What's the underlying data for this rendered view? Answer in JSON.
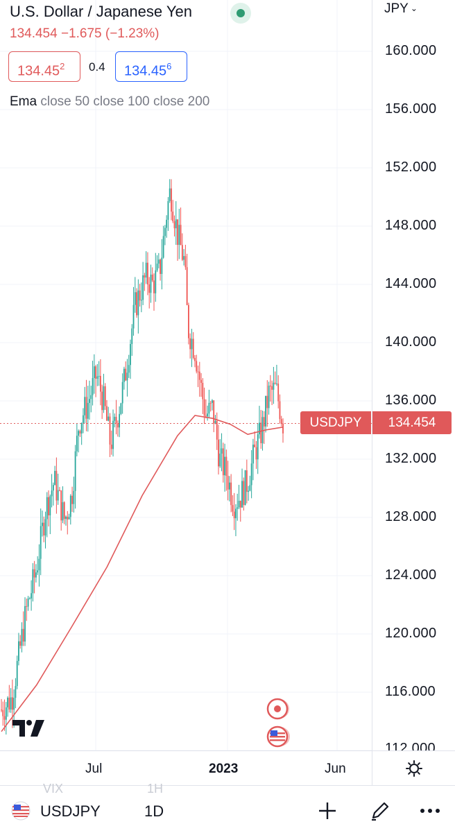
{
  "header": {
    "title": "U.S. Dollar / Japanese Yen",
    "quote": "134.454  −1.675 (−1.23%)",
    "sell_price": "134.45",
    "sell_price_sup": "2",
    "spread": "0.4",
    "buy_price": "134.45",
    "buy_price_sup": "6"
  },
  "indicator": {
    "name": "Ema",
    "params": "close 50 close 100 close 200"
  },
  "price_scale": {
    "currency": "JPY",
    "ticks": [
      "160.000",
      "156.000",
      "152.000",
      "148.000",
      "144.000",
      "140.000",
      "136.000",
      "132.000",
      "128.000",
      "124.000",
      "120.000",
      "116.000",
      "112.000"
    ]
  },
  "time_axis": {
    "labels": [
      "Jul",
      "2023",
      "Jun"
    ]
  },
  "price_tag": {
    "symbol": "USDJPY",
    "value": "134.454"
  },
  "toolbar": {
    "symbol": "USDJPY",
    "interval": "1D",
    "ghost_left": "VIX",
    "ghost_right": "1H"
  },
  "colors": {
    "up": "#26a69a",
    "down": "#ef5350",
    "ema": "#e0595a",
    "live": "#2f9b72",
    "buy": "#2962ff"
  },
  "icons": [
    "live-dot-icon",
    "chevron-down-icon",
    "settings-gear-icon",
    "tradingview-logo-icon",
    "event-icon",
    "us-flag-icon",
    "plus-icon",
    "pencil-icon",
    "more-icon"
  ],
  "chart_data": {
    "type": "candlestick",
    "symbol": "USDJPY",
    "interval": "1D",
    "ylim": [
      112,
      162
    ],
    "current_price": 134.454,
    "anchors": [
      {
        "pos": 0.0,
        "v": 114.8
      },
      {
        "pos": 0.03,
        "v": 115.6
      },
      {
        "pos": 0.07,
        "v": 121.5
      },
      {
        "pos": 0.1,
        "v": 124.5
      },
      {
        "pos": 0.125,
        "v": 128.5
      },
      {
        "pos": 0.15,
        "v": 130.5
      },
      {
        "pos": 0.18,
        "v": 127.8
      },
      {
        "pos": 0.2,
        "v": 129.5
      },
      {
        "pos": 0.22,
        "v": 134.5
      },
      {
        "pos": 0.245,
        "v": 135.8
      },
      {
        "pos": 0.27,
        "v": 137.8
      },
      {
        "pos": 0.29,
        "v": 136.0
      },
      {
        "pos": 0.31,
        "v": 133.0
      },
      {
        "pos": 0.33,
        "v": 135.0
      },
      {
        "pos": 0.35,
        "v": 137.5
      },
      {
        "pos": 0.38,
        "v": 142.5
      },
      {
        "pos": 0.41,
        "v": 144.5
      },
      {
        "pos": 0.43,
        "v": 144.0
      },
      {
        "pos": 0.45,
        "v": 145.0
      },
      {
        "pos": 0.47,
        "v": 149.0
      },
      {
        "pos": 0.48,
        "v": 150.5
      },
      {
        "pos": 0.5,
        "v": 147.5
      },
      {
        "pos": 0.51,
        "v": 146.5
      },
      {
        "pos": 0.52,
        "v": 145.5
      },
      {
        "pos": 0.53,
        "v": 141.0
      },
      {
        "pos": 0.55,
        "v": 139.5
      },
      {
        "pos": 0.57,
        "v": 136.5
      },
      {
        "pos": 0.58,
        "v": 135.0
      },
      {
        "pos": 0.6,
        "v": 135.5
      },
      {
        "pos": 0.62,
        "v": 132.0
      },
      {
        "pos": 0.64,
        "v": 131.0
      },
      {
        "pos": 0.66,
        "v": 129.0
      },
      {
        "pos": 0.68,
        "v": 129.5
      },
      {
        "pos": 0.7,
        "v": 130.5
      },
      {
        "pos": 0.72,
        "v": 132.5
      },
      {
        "pos": 0.74,
        "v": 134.0
      },
      {
        "pos": 0.76,
        "v": 136.5
      },
      {
        "pos": 0.78,
        "v": 136.8
      },
      {
        "pos": 0.8,
        "v": 134.5
      }
    ],
    "ema_line": [
      {
        "pos": 0.0,
        "v": 113.3
      },
      {
        "pos": 0.1,
        "v": 116.5
      },
      {
        "pos": 0.2,
        "v": 120.5
      },
      {
        "pos": 0.3,
        "v": 124.6
      },
      {
        "pos": 0.4,
        "v": 129.5
      },
      {
        "pos": 0.5,
        "v": 133.6
      },
      {
        "pos": 0.55,
        "v": 135.0
      },
      {
        "pos": 0.6,
        "v": 134.8
      },
      {
        "pos": 0.65,
        "v": 134.4
      },
      {
        "pos": 0.7,
        "v": 133.7
      },
      {
        "pos": 0.75,
        "v": 134.0
      },
      {
        "pos": 0.8,
        "v": 134.2
      }
    ]
  }
}
